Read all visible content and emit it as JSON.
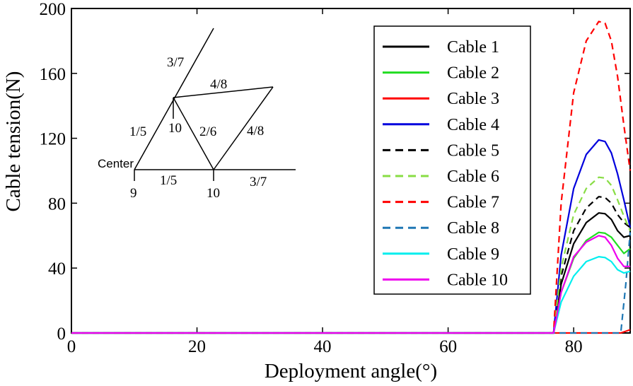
{
  "chart_data": {
    "type": "line",
    "xlabel": "Deployment angle(°)",
    "ylabel": "Cable tension(N)",
    "xlim": [
      0,
      89
    ],
    "ylim": [
      0,
      200
    ],
    "xticks": [
      0,
      20,
      40,
      60,
      80
    ],
    "yticks": [
      0,
      40,
      80,
      120,
      160,
      200
    ],
    "legend_position": "top-right",
    "series": [
      {
        "name": "Cable 1",
        "color": "#000000",
        "dash": "solid",
        "points": [
          [
            0,
            0
          ],
          [
            76.8,
            0
          ],
          [
            78,
            30
          ],
          [
            80,
            55
          ],
          [
            82,
            68
          ],
          [
            84,
            74
          ],
          [
            85,
            73.5
          ],
          [
            86,
            70
          ],
          [
            87,
            63
          ],
          [
            88,
            59
          ],
          [
            89,
            60
          ]
        ]
      },
      {
        "name": "Cable 2",
        "color": "#22dd22",
        "dash": "solid",
        "points": [
          [
            0,
            0
          ],
          [
            76.8,
            0
          ],
          [
            78,
            25
          ],
          [
            80,
            46
          ],
          [
            82,
            57
          ],
          [
            84,
            62
          ],
          [
            85,
            61.5
          ],
          [
            86,
            59
          ],
          [
            87,
            54
          ],
          [
            88,
            49
          ],
          [
            89,
            52
          ]
        ]
      },
      {
        "name": "Cable 3",
        "color": "#ff0000",
        "dash": "solid",
        "points": [
          [
            0,
            0
          ],
          [
            87.5,
            0
          ],
          [
            89,
            2
          ]
        ]
      },
      {
        "name": "Cable 4",
        "color": "#0000dd",
        "dash": "solid",
        "points": [
          [
            0,
            0
          ],
          [
            76.8,
            0
          ],
          [
            78,
            48
          ],
          [
            80,
            89
          ],
          [
            82,
            110
          ],
          [
            84,
            119
          ],
          [
            85,
            118
          ],
          [
            86,
            111
          ],
          [
            87,
            98
          ],
          [
            88,
            82
          ],
          [
            89,
            65
          ]
        ]
      },
      {
        "name": "Cable 5",
        "color": "#000000",
        "dash": "dashed",
        "points": [
          [
            0,
            0
          ],
          [
            76.8,
            0
          ],
          [
            78,
            35
          ],
          [
            80,
            63
          ],
          [
            82,
            77
          ],
          [
            84,
            84
          ],
          [
            85,
            83.5
          ],
          [
            86,
            80
          ],
          [
            87,
            73
          ],
          [
            88,
            68
          ],
          [
            89,
            65
          ]
        ]
      },
      {
        "name": "Cable 6",
        "color": "#88dd44",
        "dash": "dashed",
        "points": [
          [
            0,
            0
          ],
          [
            76.8,
            0
          ],
          [
            78,
            40
          ],
          [
            80,
            73
          ],
          [
            82,
            89
          ],
          [
            84,
            96
          ],
          [
            85,
            95.5
          ],
          [
            86,
            91
          ],
          [
            87,
            82
          ],
          [
            88,
            72
          ],
          [
            89,
            63
          ]
        ]
      },
      {
        "name": "Cable 7",
        "color": "#ff0000",
        "dash": "dashed",
        "points": [
          [
            0,
            0
          ],
          [
            76.8,
            0
          ],
          [
            78,
            80
          ],
          [
            80,
            148
          ],
          [
            82,
            180
          ],
          [
            84,
            192
          ],
          [
            85,
            191
          ],
          [
            86,
            180
          ],
          [
            87,
            158
          ],
          [
            88,
            128
          ],
          [
            89,
            100
          ]
        ]
      },
      {
        "name": "Cable 8",
        "color": "#1f77b4",
        "dash": "dashed",
        "points": [
          [
            0,
            0
          ],
          [
            87.5,
            0
          ],
          [
            88.3,
            30
          ],
          [
            89,
            62
          ]
        ]
      },
      {
        "name": "Cable 9",
        "color": "#00eeee",
        "dash": "solid",
        "points": [
          [
            0,
            0
          ],
          [
            76.8,
            0
          ],
          [
            78,
            19
          ],
          [
            80,
            35
          ],
          [
            82,
            44
          ],
          [
            84,
            47
          ],
          [
            85,
            46.5
          ],
          [
            86,
            44
          ],
          [
            87,
            39
          ],
          [
            88,
            37
          ],
          [
            89,
            38
          ]
        ]
      },
      {
        "name": "Cable 10",
        "color": "#ee00ee",
        "dash": "solid",
        "points": [
          [
            0,
            0
          ],
          [
            76.8,
            0
          ],
          [
            78,
            25
          ],
          [
            80,
            47
          ],
          [
            82,
            56
          ],
          [
            84,
            60
          ],
          [
            85,
            59
          ],
          [
            86,
            54
          ],
          [
            87,
            46
          ],
          [
            88,
            41
          ],
          [
            89,
            41
          ]
        ]
      }
    ],
    "inset_labels": {
      "center": "Center",
      "members": [
        "3/7",
        "4/8",
        "1/5",
        "10",
        "2/6",
        "4/8",
        "1/5",
        "3/7"
      ],
      "nodes": [
        "9",
        "10"
      ]
    }
  }
}
